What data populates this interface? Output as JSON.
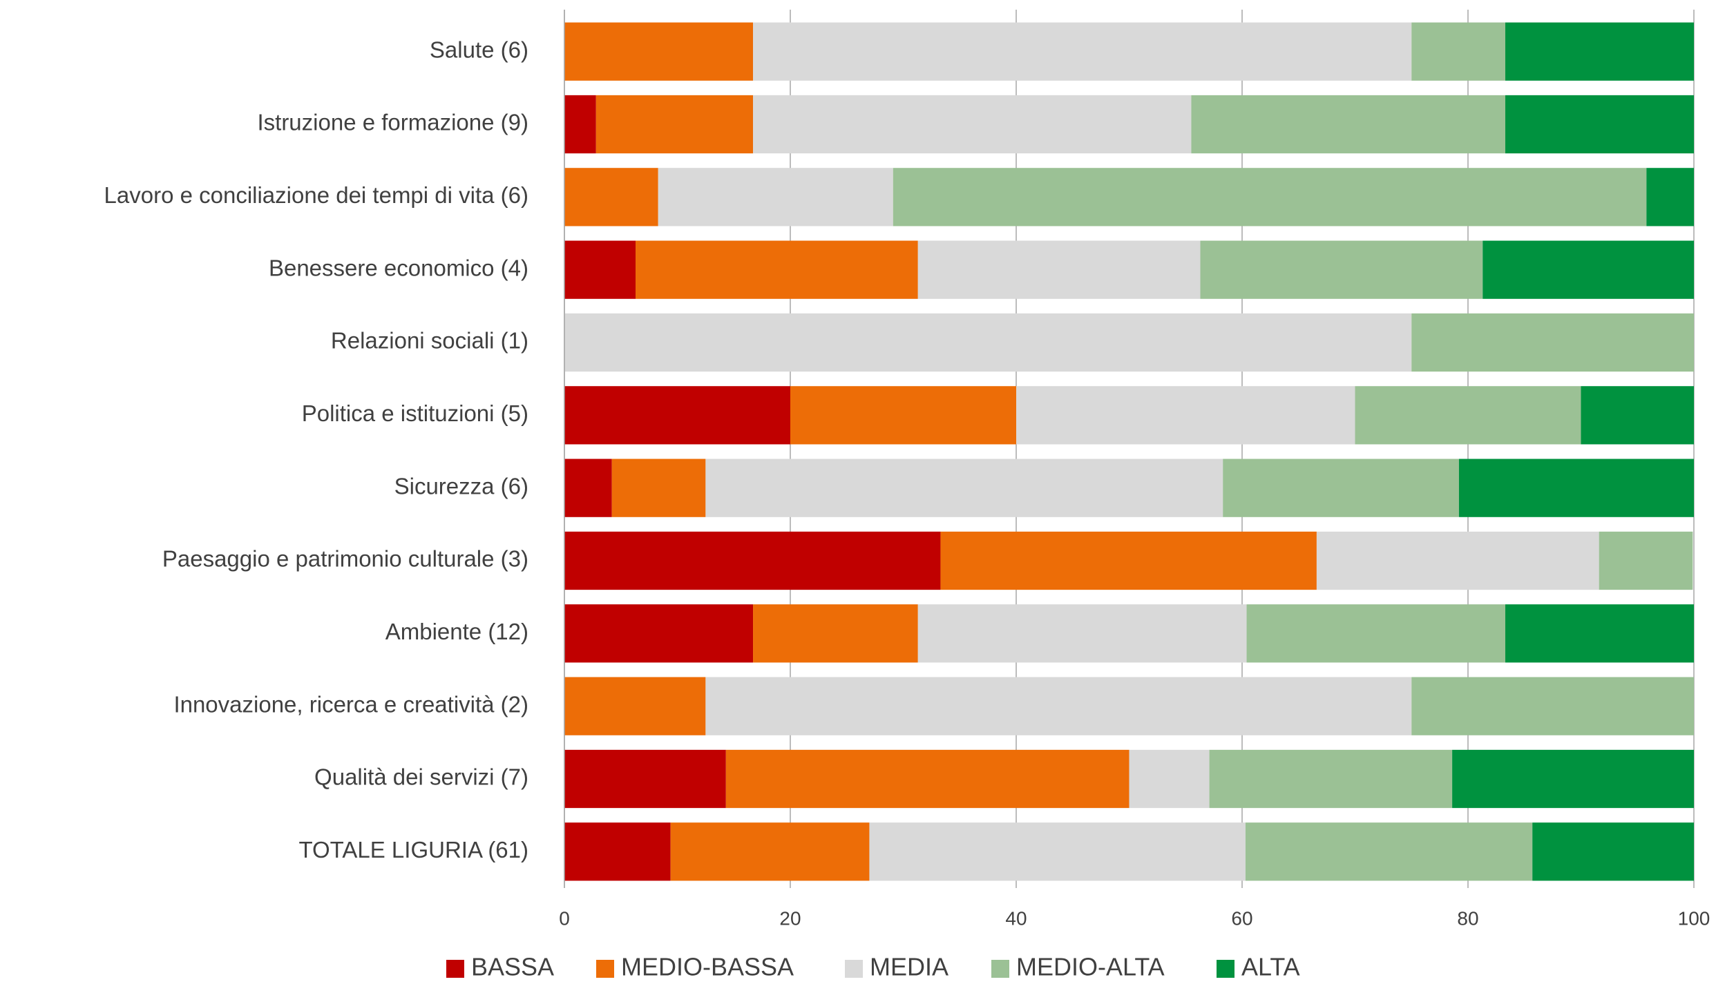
{
  "chart_data": {
    "type": "stacked-barh",
    "categories": [
      "Salute (6)",
      "Istruzione e formazione (9)",
      "Lavoro e conciliazione dei tempi di vita (6)",
      "Benessere economico (4)",
      "Relazioni sociali (1)",
      "Politica e istituzioni (5)",
      "Sicurezza (6)",
      "Paesaggio e patrimonio culturale (3)",
      "Ambiente (12)",
      "Innovazione, ricerca e creatività (2)",
      "Qualità dei servizi (7)",
      "TOTALE LIGURIA (61)"
    ],
    "series": [
      {
        "name": "BASSA",
        "color": "#c00000",
        "values": [
          0,
          2.8,
          0,
          6.3,
          0,
          20,
          4.2,
          33.3,
          16.7,
          0,
          14.3,
          9.4
        ]
      },
      {
        "name": "MEDIO-BASSA",
        "color": "#ed6d07",
        "values": [
          16.7,
          13.9,
          8.3,
          25,
          0,
          20,
          8.3,
          33.3,
          14.6,
          12.5,
          35.7,
          17.6
        ]
      },
      {
        "name": "MEDIA",
        "color": "#d9d9d9",
        "values": [
          58.3,
          38.8,
          20.8,
          25,
          75,
          30,
          45.8,
          25,
          29.1,
          62.5,
          7.1,
          33.3
        ]
      },
      {
        "name": "MEDIO-ALTA",
        "color": "#9bc195",
        "values": [
          8.3,
          27.8,
          66.7,
          25,
          25,
          20,
          20.9,
          8.3,
          22.9,
          25,
          21.5,
          25.4
        ]
      },
      {
        "name": "ALTA",
        "color": "#00923f",
        "values": [
          16.7,
          16.7,
          4.2,
          18.7,
          0,
          10,
          20.8,
          0,
          16.7,
          0,
          21.4,
          14.3
        ]
      }
    ],
    "xlim": [
      0,
      100
    ],
    "xticks": [
      0,
      20,
      40,
      60,
      80,
      100
    ],
    "grid": true,
    "legend": "bottom"
  }
}
